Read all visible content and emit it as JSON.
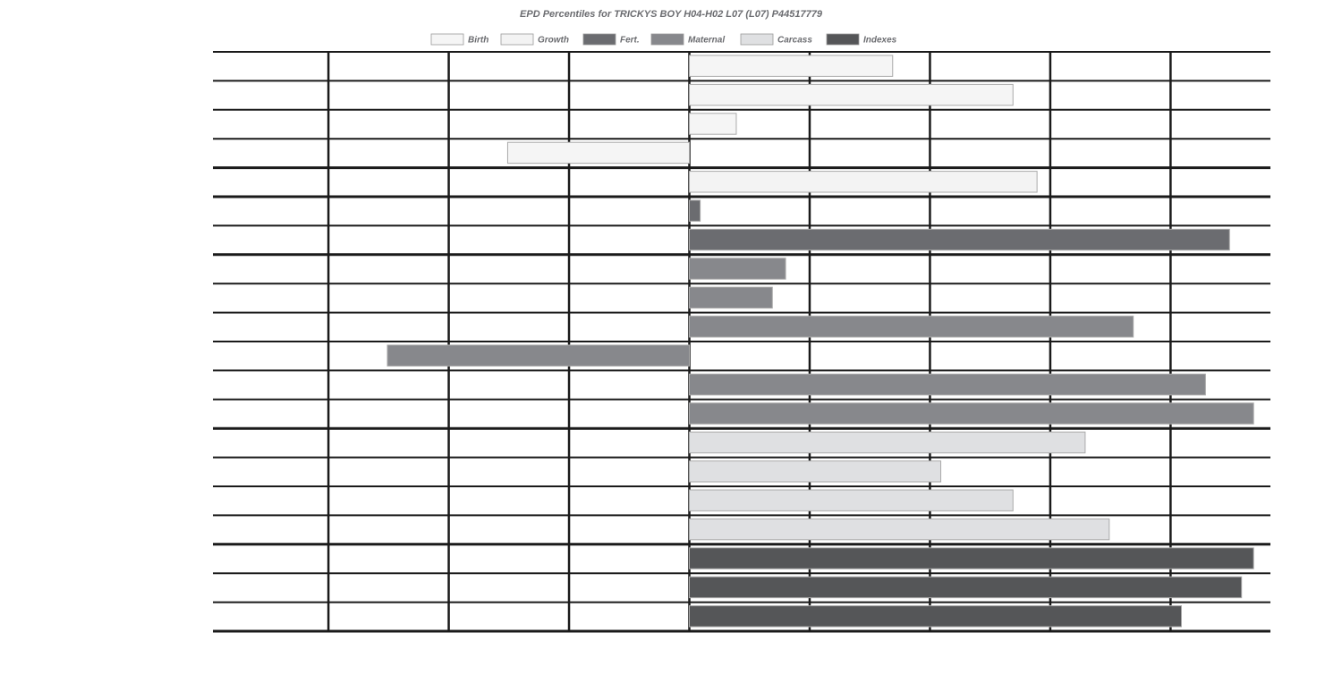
{
  "chart_data": {
    "type": "bar",
    "orientation": "horizontal",
    "title": "EPD Percentiles for TRICKYS BOY H04-H02 L07 (L07) P44517779",
    "legend_placement": "top",
    "grid": true,
    "xlim": [
      -3.96,
      4.83
    ],
    "legend": [
      {
        "name": "Birth",
        "color": "#f5f5f5"
      },
      {
        "name": "Growth",
        "color": "#f3f3f3"
      },
      {
        "name": "Fert.",
        "color": "#6b6c70"
      },
      {
        "name": "Maternal",
        "color": "#87888c"
      },
      {
        "name": "Carcass",
        "color": "#dfe0e2"
      },
      {
        "name": "Indexes",
        "color": "#555658"
      }
    ],
    "bars": [
      {
        "group": "Birth",
        "value": 1.69
      },
      {
        "group": "Birth",
        "value": 2.69
      },
      {
        "group": "Birth",
        "value": 0.39
      },
      {
        "group": "Birth",
        "value": -1.51
      },
      {
        "group": "Growth",
        "value": 2.89
      },
      {
        "group": "Fert.",
        "value": 0.09
      },
      {
        "group": "Fert.",
        "value": 4.49
      },
      {
        "group": "Maternal",
        "value": 0.8
      },
      {
        "group": "Maternal",
        "value": 0.69
      },
      {
        "group": "Maternal",
        "value": 3.69
      },
      {
        "group": "Maternal",
        "value": -2.51
      },
      {
        "group": "Maternal",
        "value": 4.29
      },
      {
        "group": "Maternal",
        "value": 4.69
      },
      {
        "group": "Carcass",
        "value": 3.29
      },
      {
        "group": "Carcass",
        "value": 2.09
      },
      {
        "group": "Carcass",
        "value": 2.69
      },
      {
        "group": "Carcass",
        "value": 3.49
      },
      {
        "group": "Indexes",
        "value": 4.69
      },
      {
        "group": "Indexes",
        "value": 4.59
      },
      {
        "group": "Indexes",
        "value": 4.09
      }
    ],
    "gridlines_x": [
      -3,
      -2,
      -1,
      0,
      1,
      2,
      3,
      4
    ]
  }
}
